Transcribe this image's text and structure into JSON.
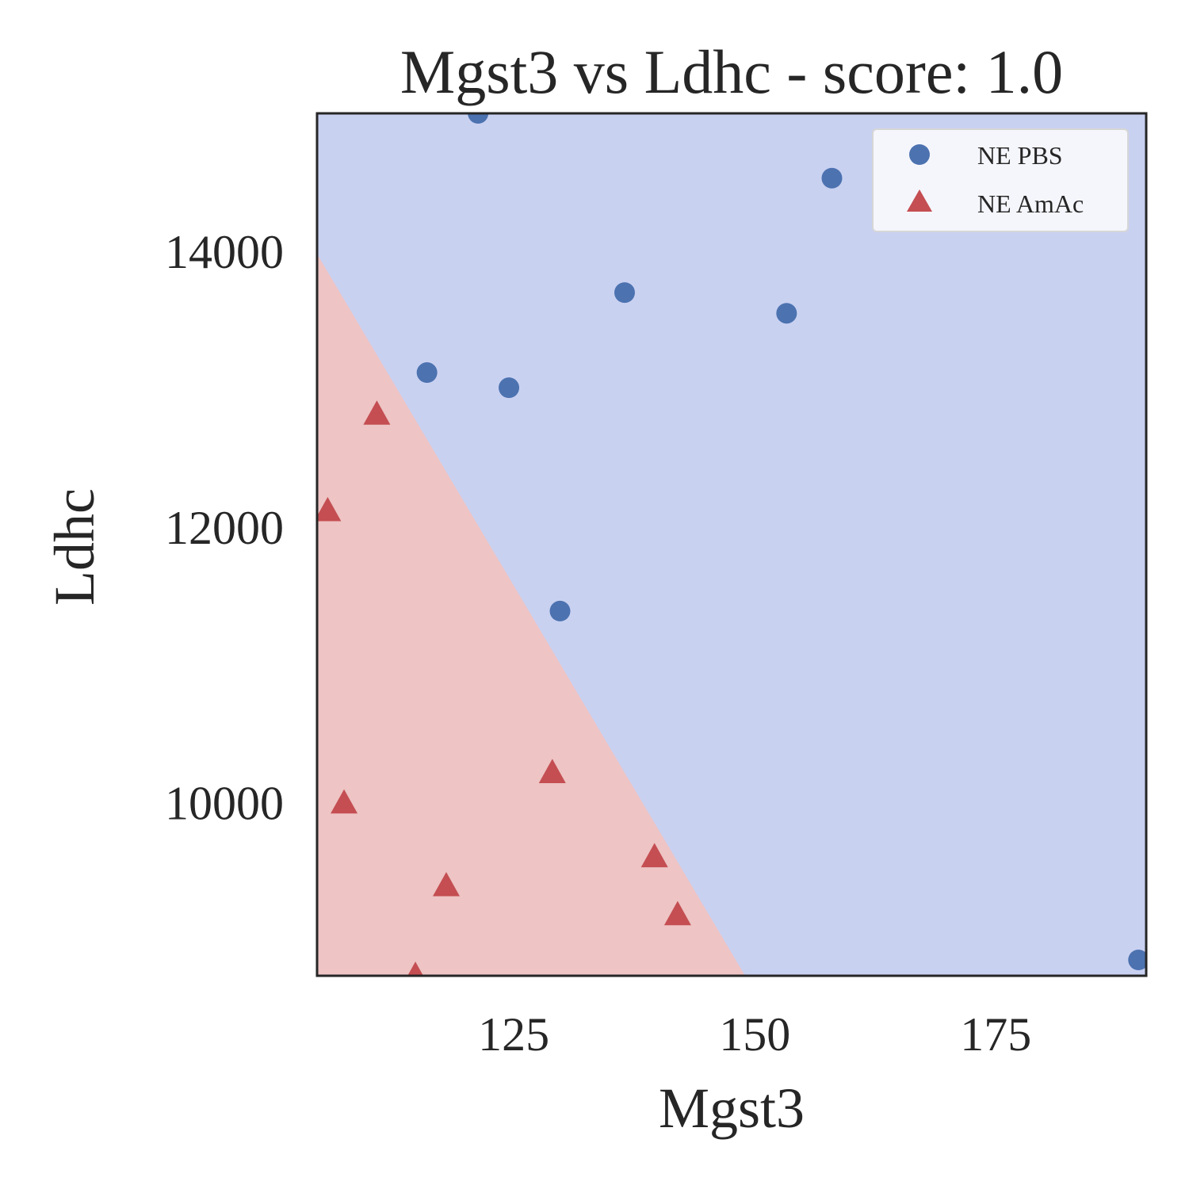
{
  "chart_data": {
    "type": "scatter",
    "title": "Mgst3 vs Ldhc - score: 1.0",
    "xlabel": "Mgst3",
    "ylabel": "Ldhc",
    "xlim": [
      104.6,
      190.6
    ],
    "ylim": [
      8745,
      15000
    ],
    "xticks": [
      125,
      150,
      175
    ],
    "yticks": [
      10000,
      12000,
      14000
    ],
    "grid": false,
    "legend_position": "top-right",
    "decision_boundary": {
      "points": [
        [
          104.6,
          13980
        ],
        [
          149.0,
          8745
        ]
      ],
      "region_below_color": "#eec4c4",
      "region_above_color": "#c9d1f1"
    },
    "series": [
      {
        "name": "NE PBS",
        "marker": "circle",
        "color": "#4c72b0",
        "points": [
          [
            121.3,
            15000
          ],
          [
            158.0,
            14530
          ],
          [
            136.5,
            13700
          ],
          [
            153.3,
            13550
          ],
          [
            116.0,
            13120
          ],
          [
            124.5,
            13010
          ],
          [
            129.8,
            11390
          ],
          [
            189.8,
            8860
          ]
        ]
      },
      {
        "name": "NE AmAc",
        "marker": "triangle",
        "color": "#c44e52",
        "points": [
          [
            110.8,
            12820
          ],
          [
            105.7,
            12120
          ],
          [
            107.4,
            10000
          ],
          [
            129.0,
            10220
          ],
          [
            139.6,
            9610
          ],
          [
            118.0,
            9400
          ],
          [
            142.0,
            9190
          ],
          [
            114.8,
            8750
          ]
        ]
      }
    ]
  }
}
